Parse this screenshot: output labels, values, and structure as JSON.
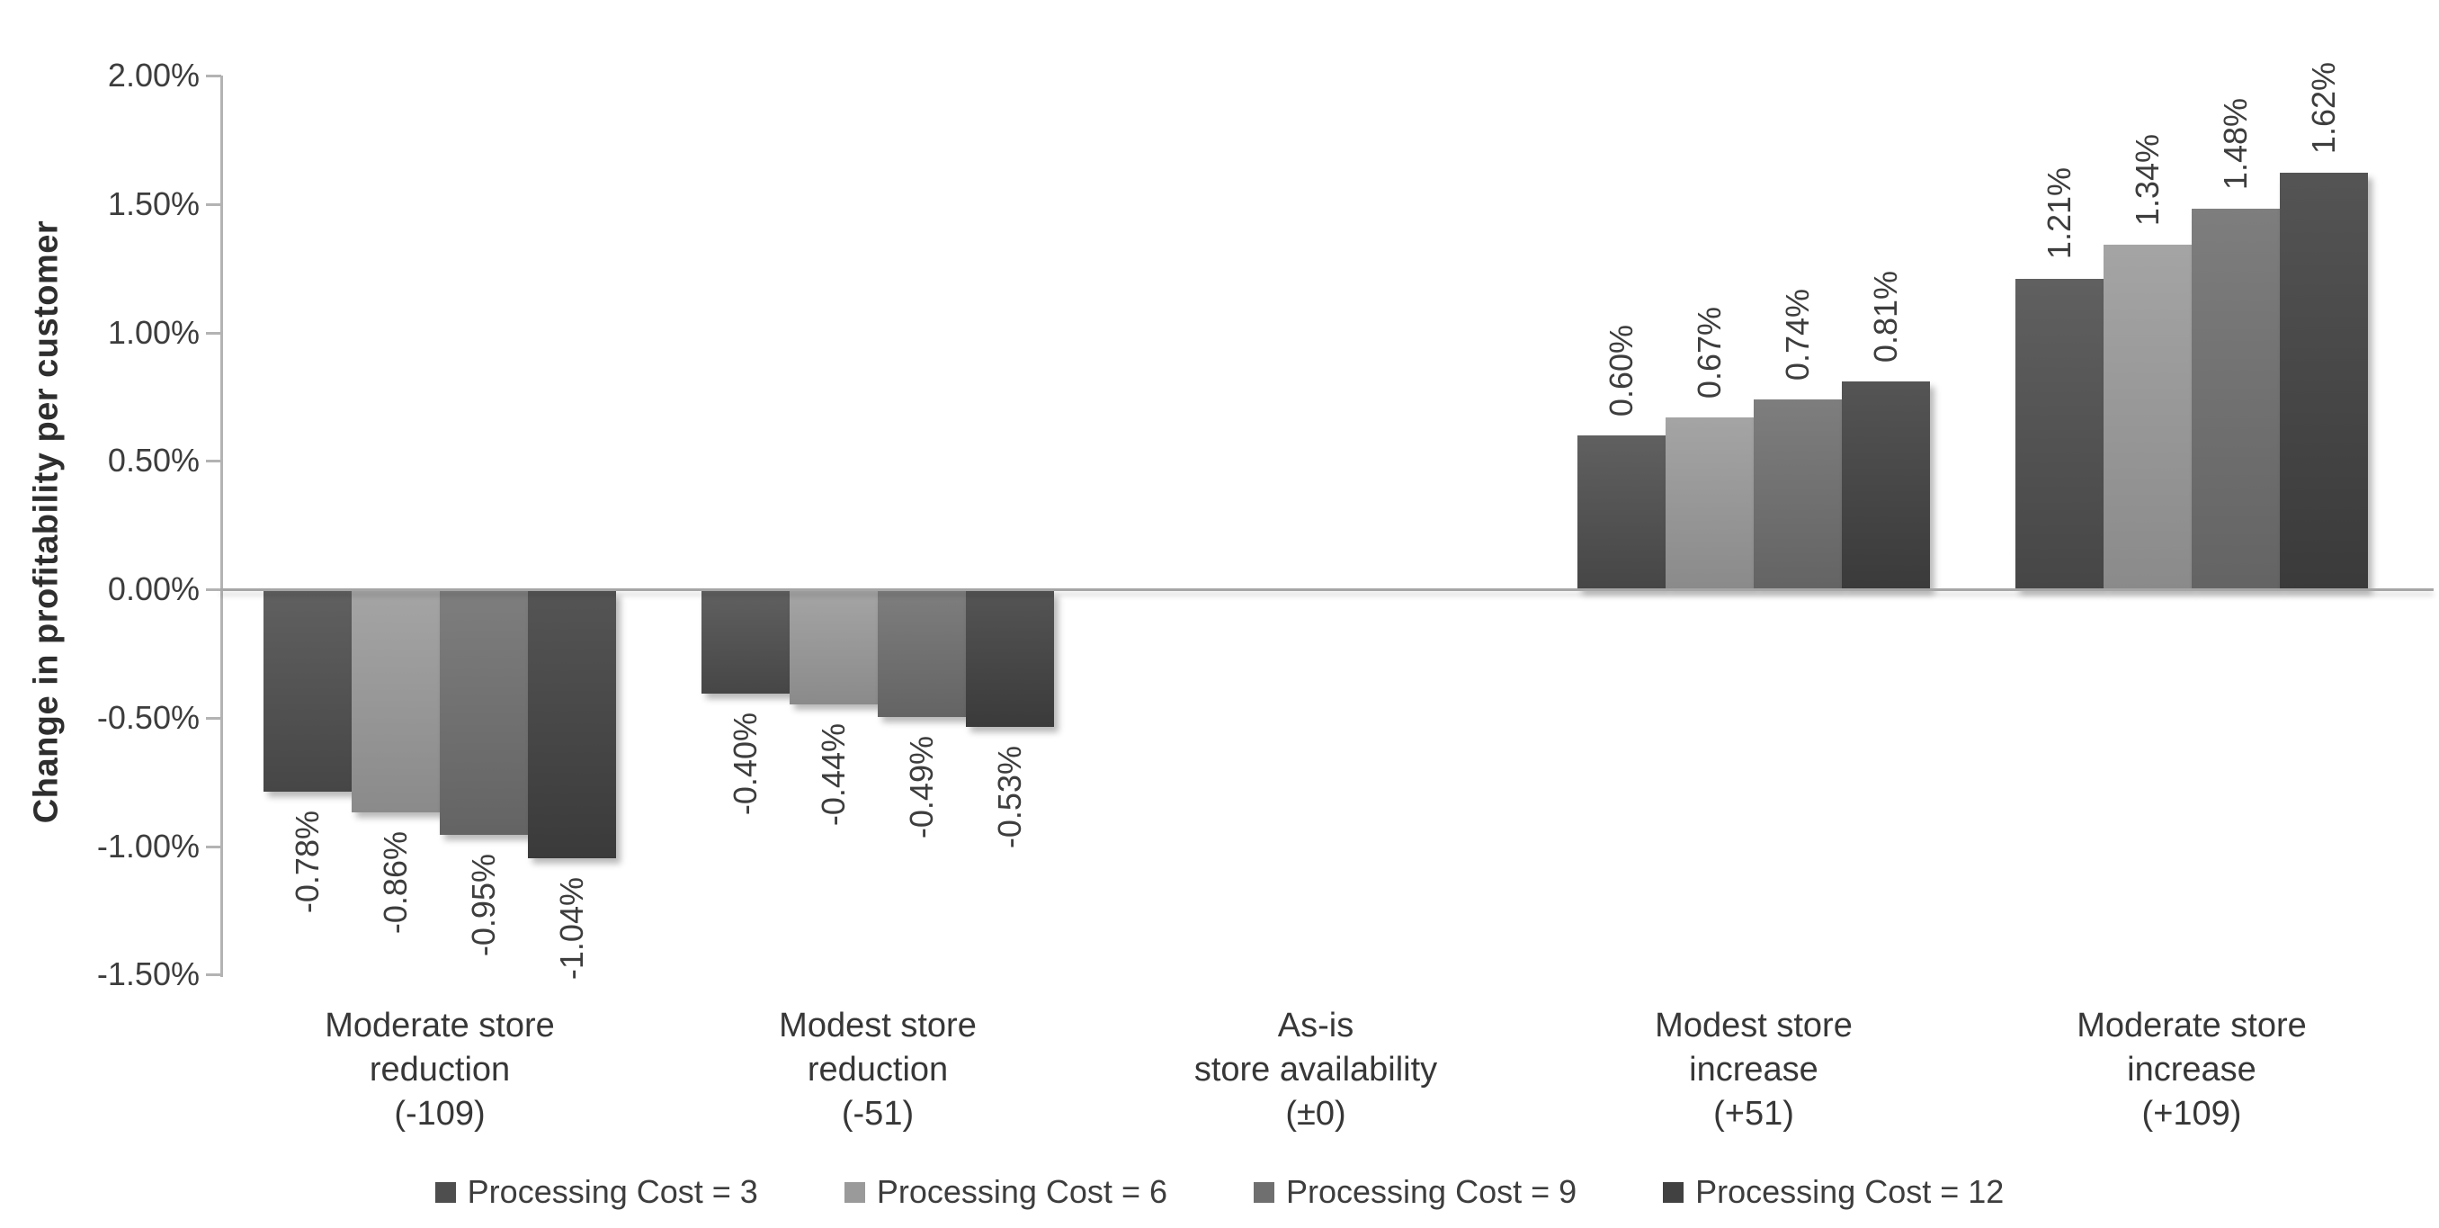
{
  "chart_data": {
    "type": "bar",
    "title": "",
    "ylabel": "Change in profitability per customer",
    "xlabel": "",
    "categories": [
      {
        "lines": [
          "Moderate store",
          "reduction",
          "(-109)"
        ]
      },
      {
        "lines": [
          "Modest store",
          "reduction",
          "(-51)"
        ]
      },
      {
        "lines": [
          "As-is",
          "store availability",
          "(±0)"
        ]
      },
      {
        "lines": [
          "Modest store",
          "increase",
          "(+51)"
        ]
      },
      {
        "lines": [
          "Moderate store",
          "increase",
          "(+109)"
        ]
      }
    ],
    "series": [
      {
        "name": "Processing Cost = 3",
        "color": "#4e4e4e",
        "values": [
          -0.78,
          -0.4,
          0,
          0.6,
          1.21
        ],
        "labels": [
          "-0.78%",
          "-0.40%",
          "",
          "0.60%",
          "1.21%"
        ]
      },
      {
        "name": "Processing Cost = 6",
        "color": "#9a9a9a",
        "values": [
          -0.86,
          -0.44,
          0,
          0.67,
          1.34
        ],
        "labels": [
          "-0.86%",
          "-0.44%",
          "",
          "0.67%",
          "1.34%"
        ]
      },
      {
        "name": "Processing Cost = 9",
        "color": "#6f6f6f",
        "values": [
          -0.95,
          -0.49,
          0,
          0.74,
          1.48
        ],
        "labels": [
          "-0.95%",
          "-0.49%",
          "",
          "0.74%",
          "1.48%"
        ]
      },
      {
        "name": "Processing Cost = 12",
        "color": "#414141",
        "values": [
          -1.04,
          -0.53,
          0,
          0.81,
          1.62
        ],
        "labels": [
          "-1.04%",
          "-0.53%",
          "",
          "0.81%",
          "1.62%"
        ]
      }
    ],
    "y_ticks": [
      {
        "label": "2.00%",
        "value": 2.0
      },
      {
        "label": "1.50%",
        "value": 1.5
      },
      {
        "label": "1.00%",
        "value": 1.0
      },
      {
        "label": "0.50%",
        "value": 0.5
      },
      {
        "label": "0.00%",
        "value": 0.0
      },
      {
        "label": "-0.50%",
        "value": -0.5
      },
      {
        "label": "-1.00%",
        "value": -1.0
      },
      {
        "label": "-1.50%",
        "value": -1.5
      }
    ],
    "ylim": [
      -1.5,
      2.0
    ],
    "grid": false,
    "legend_position": "bottom",
    "axis_color": "#b3b3b3",
    "zero_line_color": "#a6a6a6",
    "text_color": "#3d3d3d"
  }
}
